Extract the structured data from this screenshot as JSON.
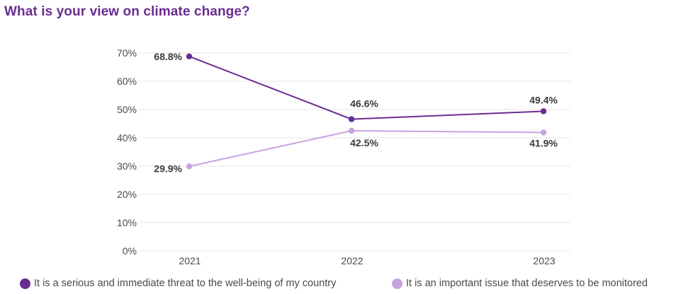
{
  "title": "What is your view on climate change?",
  "colors": {
    "title": "#6a2c91",
    "series1": "#6a2c91",
    "series2": "#c9a3e0",
    "grid": "#e4e4e4",
    "axis_text": "#4a4a4a",
    "label_text": "#3a3a3a"
  },
  "chart_data": {
    "type": "line",
    "title": "What is your view on climate change?",
    "x": [
      "2021",
      "2022",
      "2023"
    ],
    "ylim": [
      0,
      70
    ],
    "yticks": [
      "0%",
      "10%",
      "20%",
      "30%",
      "40%",
      "50%",
      "60%",
      "70%"
    ],
    "grid": true,
    "legend": "bottom",
    "series": [
      {
        "name": "It is a serious and immediate threat to the well-being of my country",
        "values": [
          68.8,
          46.6,
          49.4
        ],
        "labels": [
          "68.8%",
          "46.6%",
          "49.4%"
        ],
        "color": "#6a2c91"
      },
      {
        "name": "It is an important issue that deserves to be monitored",
        "values": [
          29.9,
          42.5,
          41.9
        ],
        "labels": [
          "29.9%",
          "42.5%",
          "41.9%"
        ],
        "color": "#c9a3e0"
      }
    ]
  }
}
